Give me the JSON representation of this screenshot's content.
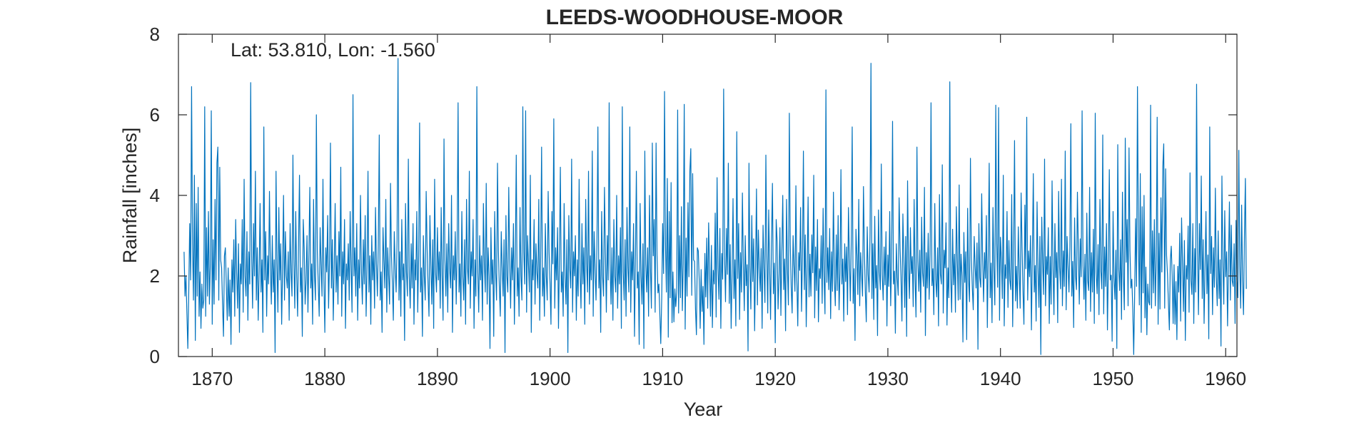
{
  "chart_data": {
    "type": "line",
    "title": "LEEDS-WOODHOUSE-MOOR",
    "xlabel": "Year",
    "ylabel": "Rainfall [inches]",
    "annotation": "Lat: 53.810, Lon: -1.560",
    "xlim": [
      1867,
      1961
    ],
    "ylim": [
      0,
      8
    ],
    "xticks": [
      1870,
      1880,
      1890,
      1900,
      1910,
      1920,
      1930,
      1940,
      1950,
      1960
    ],
    "yticks": [
      0,
      2,
      4,
      6,
      8
    ],
    "grid": false,
    "line_color": "#0072BD",
    "series": [
      {
        "start_year": 1867,
        "interval": "monthly",
        "y_pattern": [
          2.6,
          1.5,
          2.0,
          1.1,
          0.2,
          1.6,
          3.3,
          1.9,
          6.7,
          2.8,
          1.4,
          4.5,
          0.4,
          3.8,
          1.5,
          4.2,
          1.0,
          2.1,
          0.7,
          1.8,
          1.2,
          1.4,
          6.2,
          1.0,
          3.2,
          1.5,
          3.6,
          1.3,
          2.3,
          6.1,
          0.8,
          2.9,
          1.3,
          3.9,
          1.9,
          4.8,
          5.2,
          1.4,
          4.7,
          2.4,
          2.2,
          1.3,
          0.5,
          2.5,
          2.7,
          1.8,
          0.9,
          2.2,
          1.0,
          1.9,
          0.3,
          2.4,
          1.6,
          2.9,
          1.0,
          3.4,
          2.1,
          1.2,
          2.8,
          0.6,
          2.3,
          1.8,
          3.4,
          1.1,
          4.4,
          2.0,
          1.5,
          3.1,
          0.9,
          2.6,
          1.8,
          6.8,
          2.5,
          1.2,
          3.3,
          2.0,
          4.6,
          1.4,
          2.7,
          0.9,
          2.1,
          3.8,
          1.6,
          2.4,
          0.6,
          5.7,
          1.9,
          3.1,
          1.0,
          2.5,
          1.8,
          4.1,
          2.2,
          1.3,
          3.0,
          1.6,
          2.4,
          0.1,
          4.6,
          2.3,
          1.1,
          3.7,
          1.9,
          2.8,
          0.8,
          2.2,
          4.0,
          1.4,
          3.1,
          2.0,
          1.7,
          2.6,
          0.9,
          3.3,
          2.1,
          1.5,
          5.0,
          2.4,
          1.2,
          3.6,
          2.0,
          1.0,
          2.8,
          4.5,
          1.6,
          2.2,
          0.5,
          3.4,
          2.7,
          1.3,
          1.9,
          3.0,
          1.1,
          2.5,
          4.2,
          1.7,
          2.3,
          0.8,
          3.9,
          2.0,
          1.4,
          6.0,
          2.6,
          1.8,
          1.0,
          3.2,
          2.3,
          1.5,
          4.4,
          1.9,
          0.6,
          2.7,
          2.1,
          3.5,
          1.2,
          2.4,
          5.3,
          1.7,
          2.9,
          0.9,
          2.2,
          3.8,
          1.6,
          2.5,
          1.3,
          3.1,
          2.0,
          4.7,
          1.0,
          2.6,
          1.8,
          3.4,
          0.7,
          2.3,
          1.9,
          2.8,
          1.4,
          3.6,
          2.2,
          1.1,
          6.5,
          2.0,
          2.7,
          1.5,
          3.3,
          0.9,
          2.4,
          1.7,
          4.0,
          2.1,
          1.3,
          2.9,
          1.8,
          3.5,
          1.0,
          2.2,
          4.6,
          1.6,
          2.5,
          0.8,
          3.0,
          1.9,
          2.6,
          1.2,
          3.7,
          2.3,
          1.5,
          2.8,
          5.5,
          1.4,
          2.1,
          0.6,
          3.2,
          2.4,
          1.7,
          3.9,
          1.1,
          2.7,
          2.0,
          1.3,
          4.3,
          2.5,
          1.8,
          0.9,
          3.1,
          2.2,
          1.6,
          2.9,
          7.4,
          1.4,
          2.6,
          1.0,
          3.4,
          1.9,
          2.3,
          0.4,
          3.8,
          2.1,
          1.5,
          4.9,
          2.0,
          1.2,
          2.8,
          1.7,
          3.3,
          0.8,
          2.4,
          1.9,
          3.6,
          1.1,
          2.5,
          5.8,
          1.6,
          2.2,
          0.5,
          3.0,
          2.0,
          1.4,
          4.1,
          2.7,
          1.8,
          1.0,
          3.5,
          2.3,
          1.3,
          2.9,
          0.7,
          4.4,
          2.1,
          1.6,
          3.2,
          1.9,
          2.6,
          1.2,
          3.7,
          2.0,
          0.9,
          5.4,
          2.4,
          1.5,
          2.8,
          1.1,
          3.3,
          2.2,
          1.7,
          4.0,
          0.6,
          2.5,
          1.9,
          3.1,
          1.3,
          2.7,
          6.3,
          1.6,
          2.3,
          1.0,
          3.6,
          2.0,
          1.4,
          2.9,
          0.8,
          3.9,
          2.2,
          1.8,
          4.6,
          1.2,
          2.6,
          2.0,
          3.4,
          0.7,
          2.4,
          1.5,
          6.7,
          2.1,
          1.1,
          3.0,
          1.9,
          2.5,
          0.9,
          3.8,
          2.3,
          1.6,
          4.3,
          1.3,
          2.7,
          2.0,
          0.2,
          3.2,
          1.8,
          2.4,
          0.5,
          3.6,
          2.1,
          1.4,
          4.8,
          2.6,
          1.7,
          1.0,
          3.1,
          2.2,
          1.5,
          2.9,
          0.1,
          3.5,
          2.0,
          1.6,
          4.2,
          2.4,
          1.2,
          2.7,
          1.9,
          3.3,
          0.8,
          2.5,
          5.0,
          1.5,
          2.2,
          1.0,
          3.7,
          2.0,
          1.4,
          6.2,
          2.6,
          1.8,
          6.1,
          1.1,
          3.0,
          2.3,
          1.6,
          4.5,
          0.6,
          2.4,
          1.9,
          3.4,
          1.3,
          2.8,
          2.1,
          1.7,
          3.9,
          0.9,
          2.5,
          5.2,
          1.5,
          2.2,
          1.0,
          3.3,
          2.0,
          1.4,
          4.1,
          2.6,
          1.8,
          0.8,
          3.6,
          2.3,
          5.9,
          1.2,
          2.7,
          1.9,
          3.2,
          0.7,
          2.4,
          4.7,
          1.6,
          2.1,
          1.0,
          3.8,
          2.0,
          1.3,
          2.9,
          0.1,
          3.5,
          2.2,
          1.7,
          4.9,
          1.1,
          2.6,
          2.0,
          3.0,
          0.9,
          2.4,
          1.5,
          4.4,
          2.1,
          1.2,
          3.3,
          1.8,
          2.7,
          0.8,
          3.9,
          2.3,
          1.6,
          4.6,
          1.3,
          2.5,
          1.9,
          5.1,
          1.0,
          3.1,
          2.2,
          1.4,
          2.8,
          5.7,
          1.7,
          2.4,
          0.6,
          3.6,
          2.0,
          1.5,
          4.2,
          2.6,
          1.1,
          3.0,
          1.9,
          6.3,
          2.3,
          1.3,
          2.7,
          0.9,
          3.4,
          2.0,
          1.6,
          4.0,
          1.2,
          2.5,
          1.8,
          3.2,
          0.7,
          6.2,
          2.1,
          1.4,
          2.9,
          1.0,
          3.7,
          2.2,
          1.6,
          5.7,
          1.1,
          2.6,
          1.9,
          3.3,
          0.5,
          2.4,
          4.6,
          1.7,
          2.1,
          0.3,
          3.8,
          2.0,
          1.3,
          2.8,
          0.2,
          5.1,
          2.3,
          1.6,
          2.7,
          1.0,
          4.0,
          2.2,
          1.2,
          5.3,
          2.5,
          3.4,
          1.1,
          5.3
        ]
      }
    ]
  }
}
